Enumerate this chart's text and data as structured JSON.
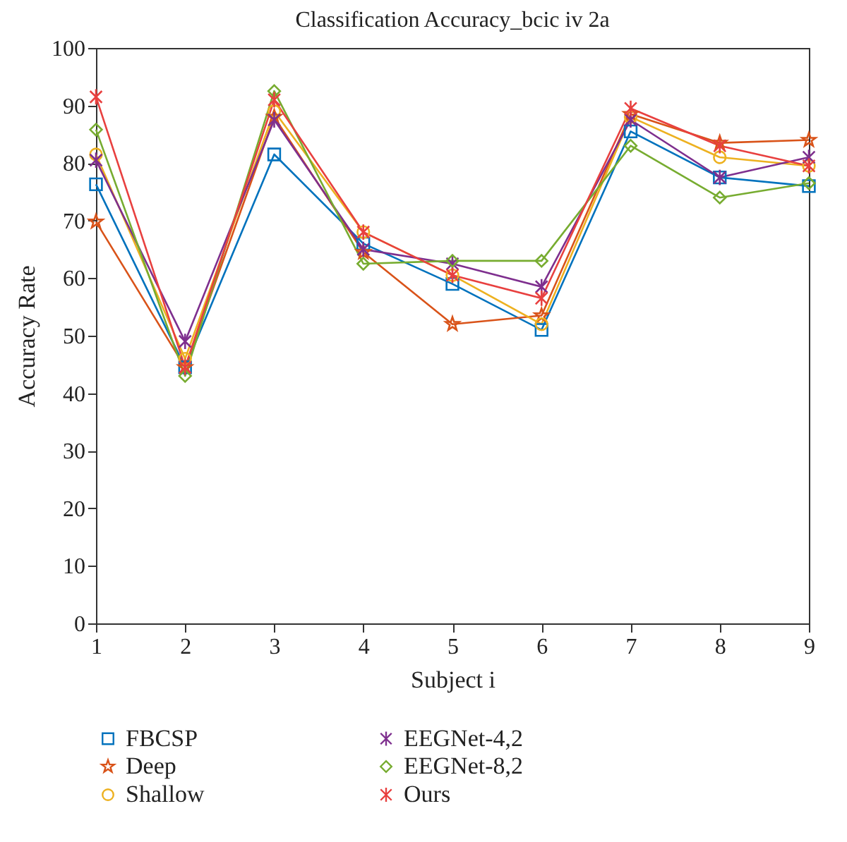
{
  "chart_data": {
    "type": "line",
    "title": "Classification Accuracy_bcic iv 2a",
    "xlabel": "Subject i",
    "ylabel": "Accuracy Rate",
    "x": [
      1,
      2,
      3,
      4,
      5,
      6,
      7,
      8,
      9
    ],
    "series": [
      {
        "name": "FBCSP",
        "color": "#0072bd",
        "marker": "square",
        "values": [
          76.3,
          44.5,
          81.5,
          66,
          59,
          51,
          85.5,
          77.5,
          76
        ]
      },
      {
        "name": "Deep",
        "color": "#d95319",
        "marker": "star",
        "values": [
          69.8,
          44.5,
          88,
          64.5,
          52,
          53.5,
          88.5,
          83.5,
          84
        ]
      },
      {
        "name": "Shallow",
        "color": "#edb120",
        "marker": "circle",
        "values": [
          81.5,
          46,
          89,
          68,
          60.5,
          52,
          88,
          81,
          79.5
        ]
      },
      {
        "name": "EEGNet-4,2",
        "color": "#7e2f8e",
        "marker": "cross",
        "values": [
          80.5,
          49,
          87.5,
          65,
          62.5,
          58.5,
          87.5,
          77.5,
          81
        ]
      },
      {
        "name": "EEGNet-8,2",
        "color": "#77ac30",
        "marker": "diamond",
        "values": [
          85.8,
          43,
          92.5,
          62.5,
          63,
          63,
          83,
          74,
          76.5
        ]
      },
      {
        "name": "Ours",
        "color": "#e8403f",
        "marker": "cross",
        "values": [
          91.5,
          44.5,
          91,
          68,
          60.5,
          56.5,
          89.5,
          83,
          79.5
        ]
      }
    ],
    "xlim": [
      1,
      9
    ],
    "xticks": [
      1,
      2,
      3,
      4,
      5,
      6,
      7,
      8,
      9
    ],
    "ylim": [
      0,
      100
    ],
    "yticks": [
      0,
      10,
      20,
      30,
      40,
      50,
      60,
      70,
      80,
      90,
      100
    ],
    "grid": false,
    "legend": "bottom",
    "line_style": "solid"
  }
}
